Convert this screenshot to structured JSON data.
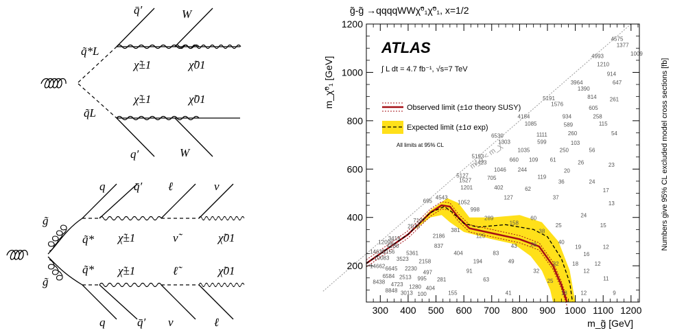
{
  "diagram_top": {
    "labels": {
      "qbar_prime": "q̄′",
      "W_top": "W",
      "squark_star": "q̃*L",
      "chargino_top": "χ̃±1",
      "neutralino_top": "χ̃01",
      "squark": "q̃L",
      "chargino_bot": "χ̃±1",
      "neutralino_bot": "χ̃01",
      "q_prime": "q′",
      "W_bot": "W"
    }
  },
  "diagram_bottom": {
    "labels": {
      "q_top": "q",
      "qbar_prime_top": "q̄′",
      "ell_top": "ℓ",
      "nu_top": "ν",
      "gluino_top": "g̃",
      "q_star_top": "q̃*",
      "chargino_top": "χ̃±1",
      "sneutrino": "ν̃",
      "neutralino_top": "χ̃01",
      "gluino_bot": "g̃",
      "q_star_bot": "q̃*",
      "chargino_bot": "χ̃±1",
      "slepton": "ℓ̃",
      "neutralino_bot": "χ̃01",
      "q_bot": "q",
      "qbar_prime_bot": "q̄′",
      "nu_bot": "ν",
      "ell_bot": "ℓ"
    }
  },
  "chart_data": {
    "type": "line",
    "title": "g̃-g̃ →qqqqWWχ̃⁰₁χ̃⁰₁, x=1/2",
    "experiment": "ATLAS",
    "lumi_text": "∫ L dt = 4.7 fb⁻¹, √s=7 TeV",
    "xlabel": "m_g̃ [GeV]",
    "ylabel": "m_χ̃⁰₁ [GeV]",
    "zlabel": "Numbers give 95% CL excluded model cross sections [fb]",
    "xlim": [
      250,
      1230
    ],
    "ylim": [
      50,
      1200
    ],
    "xticks": [
      300,
      400,
      500,
      600,
      700,
      800,
      900,
      1000,
      1100,
      1200
    ],
    "yticks": [
      200,
      400,
      600,
      800,
      1000,
      1200
    ],
    "diag_label": "m_g̃ < m_χ̃",
    "cl_note": "All limits at 95% CL",
    "legend": {
      "observed": "Observed limit (±1σ theory SUSY)",
      "expected": "Expected limit (±1σ exp)"
    },
    "colors": {
      "observed": "#a50f15",
      "band": "#ffe01a",
      "diag": "#999999"
    },
    "series": [
      {
        "name": "Observed limit",
        "x": [
          250,
          300,
          400,
          480,
          520,
          550,
          580,
          620,
          700,
          800,
          870,
          920,
          950,
          970
        ],
        "y": [
          210,
          250,
          330,
          420,
          450,
          445,
          400,
          355,
          335,
          310,
          280,
          200,
          120,
          50
        ]
      },
      {
        "name": "Expected limit",
        "x": [
          250,
          300,
          400,
          480,
          530,
          560,
          600,
          650,
          750,
          850,
          900,
          950,
          980,
          990
        ],
        "y": [
          210,
          250,
          330,
          420,
          445,
          420,
          375,
          360,
          370,
          350,
          320,
          230,
          130,
          50
        ]
      }
    ],
    "expected_band_upper": {
      "x": [
        250,
        300,
        400,
        480,
        540,
        580,
        620,
        700,
        800,
        880,
        940,
        980,
        1000
      ],
      "y": [
        210,
        250,
        330,
        430,
        480,
        460,
        400,
        400,
        410,
        380,
        300,
        180,
        50
      ]
    },
    "expected_band_lower": {
      "x": [
        250,
        300,
        400,
        480,
        520,
        550,
        600,
        700,
        780,
        840,
        880,
        910,
        920
      ],
      "y": [
        210,
        250,
        330,
        400,
        410,
        380,
        340,
        310,
        290,
        240,
        180,
        100,
        50
      ]
    },
    "cross_sections": [
      {
        "x": 1150,
        "y": 1130,
        "v": "4575"
      },
      {
        "x": 1170,
        "y": 1105,
        "v": "1377"
      },
      {
        "x": 1220,
        "y": 1070,
        "v": "1009"
      },
      {
        "x": 1080,
        "y": 1060,
        "v": "4993"
      },
      {
        "x": 1100,
        "y": 1025,
        "v": "1210"
      },
      {
        "x": 1130,
        "y": 985,
        "v": "914"
      },
      {
        "x": 1005,
        "y": 950,
        "v": "3964"
      },
      {
        "x": 1030,
        "y": 925,
        "v": "1390"
      },
      {
        "x": 1150,
        "y": 950,
        "v": "647"
      },
      {
        "x": 1060,
        "y": 890,
        "v": "814"
      },
      {
        "x": 1140,
        "y": 880,
        "v": "261"
      },
      {
        "x": 905,
        "y": 885,
        "v": "5191"
      },
      {
        "x": 935,
        "y": 860,
        "v": "1576"
      },
      {
        "x": 1065,
        "y": 845,
        "v": "605"
      },
      {
        "x": 970,
        "y": 810,
        "v": "934"
      },
      {
        "x": 1080,
        "y": 810,
        "v": "258"
      },
      {
        "x": 815,
        "y": 810,
        "v": "4184"
      },
      {
        "x": 840,
        "y": 780,
        "v": "1085"
      },
      {
        "x": 975,
        "y": 775,
        "v": "589"
      },
      {
        "x": 1100,
        "y": 780,
        "v": "115"
      },
      {
        "x": 1140,
        "y": 740,
        "v": "54"
      },
      {
        "x": 880,
        "y": 735,
        "v": "1111"
      },
      {
        "x": 990,
        "y": 740,
        "v": "260"
      },
      {
        "x": 720,
        "y": 730,
        "v": "6530"
      },
      {
        "x": 745,
        "y": 705,
        "v": "1303"
      },
      {
        "x": 880,
        "y": 705,
        "v": "599"
      },
      {
        "x": 1000,
        "y": 700,
        "v": "103"
      },
      {
        "x": 960,
        "y": 670,
        "v": "250"
      },
      {
        "x": 815,
        "y": 670,
        "v": "1035"
      },
      {
        "x": 1060,
        "y": 670,
        "v": "56"
      },
      {
        "x": 650,
        "y": 645,
        "v": "5193"
      },
      {
        "x": 660,
        "y": 620,
        "v": "1423"
      },
      {
        "x": 780,
        "y": 630,
        "v": "660"
      },
      {
        "x": 850,
        "y": 630,
        "v": "109"
      },
      {
        "x": 920,
        "y": 630,
        "v": "61"
      },
      {
        "x": 1020,
        "y": 620,
        "v": "26"
      },
      {
        "x": 1130,
        "y": 610,
        "v": "23"
      },
      {
        "x": 730,
        "y": 590,
        "v": "1046"
      },
      {
        "x": 810,
        "y": 590,
        "v": "244"
      },
      {
        "x": 970,
        "y": 585,
        "v": "20"
      },
      {
        "x": 595,
        "y": 565,
        "v": "5127"
      },
      {
        "x": 605,
        "y": 545,
        "v": "1527"
      },
      {
        "x": 700,
        "y": 555,
        "v": "705"
      },
      {
        "x": 880,
        "y": 560,
        "v": "119"
      },
      {
        "x": 950,
        "y": 540,
        "v": "36"
      },
      {
        "x": 1060,
        "y": 540,
        "v": "24"
      },
      {
        "x": 610,
        "y": 515,
        "v": "1201"
      },
      {
        "x": 725,
        "y": 515,
        "v": "402"
      },
      {
        "x": 830,
        "y": 510,
        "v": "62"
      },
      {
        "x": 1110,
        "y": 505,
        "v": "17"
      },
      {
        "x": 520,
        "y": 475,
        "v": "4543"
      },
      {
        "x": 760,
        "y": 475,
        "v": "127"
      },
      {
        "x": 930,
        "y": 475,
        "v": "37"
      },
      {
        "x": 1130,
        "y": 450,
        "v": "13"
      },
      {
        "x": 470,
        "y": 460,
        "v": "695"
      },
      {
        "x": 640,
        "y": 425,
        "v": "998"
      },
      {
        "x": 600,
        "y": 455,
        "v": "1052"
      },
      {
        "x": 690,
        "y": 390,
        "v": "289"
      },
      {
        "x": 850,
        "y": 390,
        "v": "60"
      },
      {
        "x": 1030,
        "y": 400,
        "v": "24"
      },
      {
        "x": 440,
        "y": 380,
        "v": "7197"
      },
      {
        "x": 780,
        "y": 370,
        "v": "158"
      },
      {
        "x": 880,
        "y": 335,
        "v": "38"
      },
      {
        "x": 420,
        "y": 355,
        "v": "2573"
      },
      {
        "x": 570,
        "y": 340,
        "v": "381"
      },
      {
        "x": 940,
        "y": 360,
        "v": "25"
      },
      {
        "x": 1100,
        "y": 360,
        "v": "15"
      },
      {
        "x": 510,
        "y": 315,
        "v": "2186"
      },
      {
        "x": 660,
        "y": 315,
        "v": "125"
      },
      {
        "x": 950,
        "y": 290,
        "v": "40"
      },
      {
        "x": 350,
        "y": 305,
        "v": "3419"
      },
      {
        "x": 320,
        "y": 290,
        "v": "12090"
      },
      {
        "x": 345,
        "y": 275,
        "v": "4286"
      },
      {
        "x": 510,
        "y": 275,
        "v": "837"
      },
      {
        "x": 780,
        "y": 275,
        "v": "43"
      },
      {
        "x": 850,
        "y": 280,
        "v": "28"
      },
      {
        "x": 1010,
        "y": 270,
        "v": "19"
      },
      {
        "x": 1110,
        "y": 270,
        "v": "12"
      },
      {
        "x": 290,
        "y": 250,
        "v": "14635"
      },
      {
        "x": 330,
        "y": 250,
        "v": "5156"
      },
      {
        "x": 415,
        "y": 245,
        "v": "5361"
      },
      {
        "x": 580,
        "y": 245,
        "v": "404"
      },
      {
        "x": 715,
        "y": 245,
        "v": "83"
      },
      {
        "x": 1040,
        "y": 240,
        "v": "16"
      },
      {
        "x": 305,
        "y": 225,
        "v": "10083"
      },
      {
        "x": 380,
        "y": 220,
        "v": "3523"
      },
      {
        "x": 460,
        "y": 210,
        "v": "2158"
      },
      {
        "x": 650,
        "y": 210,
        "v": "194"
      },
      {
        "x": 770,
        "y": 210,
        "v": "49"
      },
      {
        "x": 930,
        "y": 200,
        "v": "32"
      },
      {
        "x": 1000,
        "y": 200,
        "v": "18"
      },
      {
        "x": 1080,
        "y": 200,
        "v": "12"
      },
      {
        "x": 290,
        "y": 190,
        "v": "14662"
      },
      {
        "x": 340,
        "y": 180,
        "v": "6645"
      },
      {
        "x": 410,
        "y": 180,
        "v": "2230"
      },
      {
        "x": 470,
        "y": 165,
        "v": "497"
      },
      {
        "x": 620,
        "y": 170,
        "v": "91"
      },
      {
        "x": 860,
        "y": 170,
        "v": "32"
      },
      {
        "x": 1040,
        "y": 170,
        "v": "12"
      },
      {
        "x": 330,
        "y": 150,
        "v": "6584"
      },
      {
        "x": 390,
        "y": 145,
        "v": "2513"
      },
      {
        "x": 450,
        "y": 140,
        "v": "995"
      },
      {
        "x": 520,
        "y": 135,
        "v": "281"
      },
      {
        "x": 680,
        "y": 135,
        "v": "63"
      },
      {
        "x": 910,
        "y": 130,
        "v": "25"
      },
      {
        "x": 1110,
        "y": 140,
        "v": "11"
      },
      {
        "x": 295,
        "y": 125,
        "v": "8438"
      },
      {
        "x": 360,
        "y": 115,
        "v": "4723"
      },
      {
        "x": 425,
        "y": 105,
        "v": "1280"
      },
      {
        "x": 480,
        "y": 100,
        "v": "404"
      },
      {
        "x": 340,
        "y": 90,
        "v": "8848"
      },
      {
        "x": 395,
        "y": 80,
        "v": "3013"
      },
      {
        "x": 450,
        "y": 75,
        "v": "100"
      },
      {
        "x": 560,
        "y": 80,
        "v": "155"
      },
      {
        "x": 760,
        "y": 80,
        "v": "41"
      },
      {
        "x": 960,
        "y": 80,
        "v": "18"
      },
      {
        "x": 1030,
        "y": 80,
        "v": "12"
      },
      {
        "x": 1140,
        "y": 80,
        "v": "9"
      }
    ]
  }
}
